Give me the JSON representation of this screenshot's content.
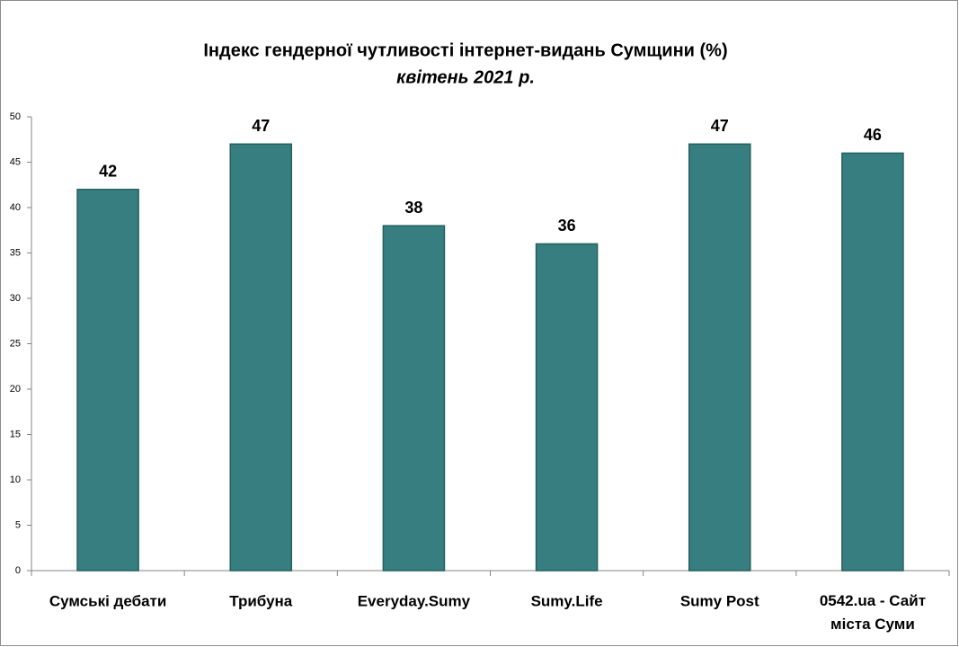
{
  "chart_data": {
    "type": "bar",
    "title": "Індекс гендерної чутливості інтернет-видань Сумщини (%)",
    "subtitle": "квітень 2021 р.",
    "categories": [
      "Сумські дебати",
      "Трибуна",
      "Everyday.Sumy",
      "Sumy.Life",
      "Sumy Post",
      "0542.ua - Сайт міста Суми"
    ],
    "values": [
      42,
      47,
      38,
      36,
      47,
      46
    ],
    "color": "#367e7f",
    "ylim": [
      0,
      50
    ],
    "yticks": [
      0,
      5,
      10,
      15,
      20,
      25,
      30,
      35,
      40,
      45,
      50
    ],
    "grid": false
  }
}
